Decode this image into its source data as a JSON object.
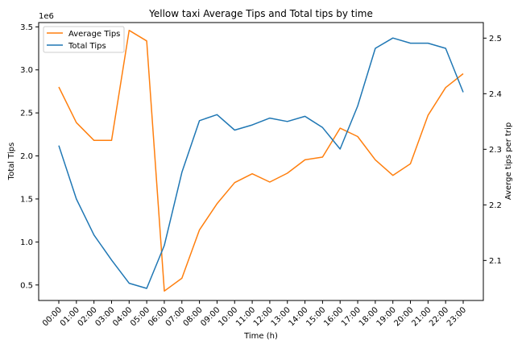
{
  "chart_data": {
    "type": "line",
    "title": "Yellow taxi Average Tips and Total tips by time",
    "xlabel": "Time (h)",
    "ylabel_left": "Total Tips",
    "ylabel_right": "Averge tips per trip",
    "left_axis_offset_label": "1e6",
    "categories": [
      "00:00",
      "01:00",
      "02:00",
      "03:00",
      "04:00",
      "05:00",
      "06:00",
      "07:00",
      "08:00",
      "09:00",
      "10:00",
      "11:00",
      "12:00",
      "13:00",
      "14:00",
      "15:00",
      "16:00",
      "17:00",
      "18:00",
      "19:00",
      "20:00",
      "21:00",
      "22:00",
      "23:00"
    ],
    "ylim_left": [
      0.32,
      3.55
    ],
    "ylim_right": [
      2.028,
      2.528
    ],
    "left_ticks": [
      0.5,
      1.0,
      1.5,
      2.0,
      2.5,
      3.0,
      3.5
    ],
    "left_tick_labels": [
      "0.5",
      "1.0",
      "1.5",
      "2.0",
      "2.5",
      "3.0",
      "3.5"
    ],
    "right_ticks": [
      2.1,
      2.2,
      2.3,
      2.4,
      2.5
    ],
    "right_tick_labels": [
      "2.1",
      "2.2",
      "2.3",
      "2.4",
      "2.5"
    ],
    "grid": false,
    "legend_position": "top-left",
    "series": [
      {
        "name": "Average Tips",
        "axis": "right",
        "color": "#ff7f0e",
        "values": [
          2.412,
          2.348,
          2.316,
          2.316,
          2.514,
          2.495,
          2.045,
          2.068,
          2.155,
          2.202,
          2.24,
          2.256,
          2.241,
          2.257,
          2.281,
          2.286,
          2.338,
          2.323,
          2.281,
          2.253,
          2.274,
          2.361,
          2.411,
          2.436
        ]
      },
      {
        "name": "Total Tips",
        "axis": "left",
        "color": "#1f77b4",
        "values": [
          2.12,
          1.5,
          1.08,
          0.79,
          0.52,
          0.46,
          0.96,
          1.81,
          2.41,
          2.48,
          2.3,
          2.36,
          2.44,
          2.4,
          2.46,
          2.33,
          2.08,
          2.58,
          3.25,
          3.37,
          3.31,
          3.31,
          3.25,
          2.74
        ]
      }
    ]
  }
}
